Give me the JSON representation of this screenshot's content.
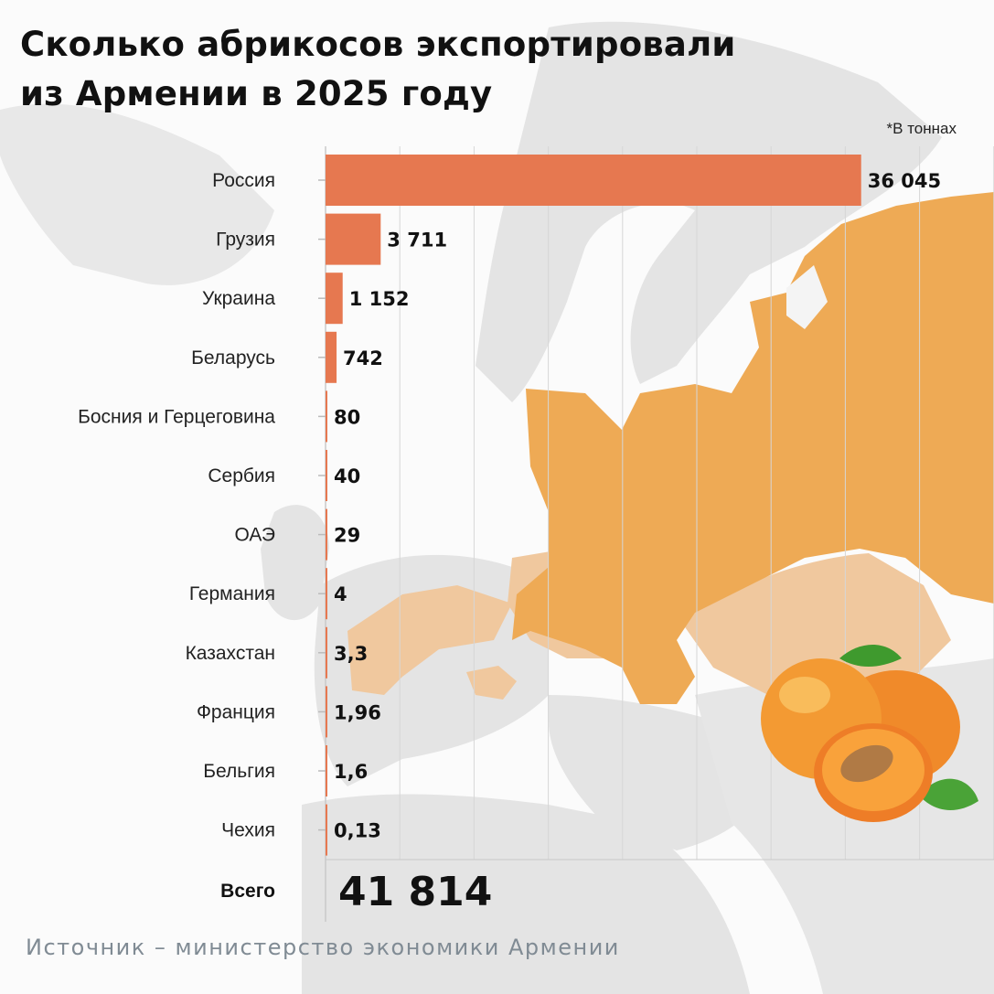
{
  "title": {
    "line1": "Сколько абрикосов экспортировали",
    "line2": "из Армении в 2025 году"
  },
  "unit_note": "*В тоннах",
  "source": "Источник – министерство экономики Армении",
  "colors": {
    "bar": "#e67850",
    "russia_map": "#eeaa55",
    "partner_map": "#f0c89e",
    "land": "#e3e3e3",
    "grid": "#d6d6d6"
  },
  "chart_data": {
    "type": "bar",
    "orientation": "horizontal",
    "unit": "тонн",
    "categories": [
      "Россия",
      "Грузия",
      "Украина",
      "Беларусь",
      "Босния и Герцеговина",
      "Сербия",
      "ОАЭ",
      "Германия",
      "Казахстан",
      "Франция",
      "Бельгия",
      "Чехия"
    ],
    "values": [
      36045,
      3711,
      1152,
      742,
      80,
      40,
      29,
      4,
      3.3,
      1.96,
      1.6,
      0.13
    ],
    "labels": [
      "36 045",
      "3 711",
      "1 152",
      "742",
      "80",
      "40",
      "29",
      "4",
      "3,3",
      "1,96",
      "1,6",
      "0,13"
    ],
    "total_label": "Всего",
    "total_value": 41814,
    "total_display": "41 814",
    "xlim": [
      0,
      40000
    ],
    "grid": true
  }
}
